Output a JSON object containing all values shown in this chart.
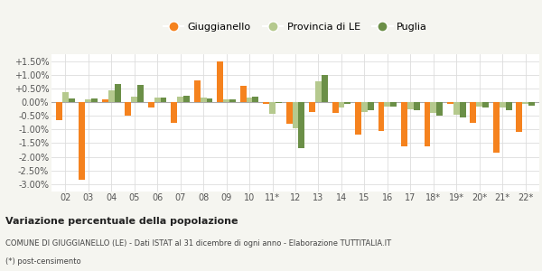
{
  "years": [
    "02",
    "03",
    "04",
    "05",
    "06",
    "07",
    "08",
    "09",
    "10",
    "11*",
    "12",
    "13",
    "14",
    "15",
    "16",
    "17",
    "18*",
    "19*",
    "20*",
    "21*",
    "22*"
  ],
  "giuggianello": [
    -0.65,
    -2.85,
    0.1,
    -0.5,
    -0.2,
    -0.75,
    0.8,
    1.47,
    0.6,
    -0.08,
    -0.8,
    -0.35,
    -0.4,
    -1.2,
    -1.07,
    -1.6,
    -1.63,
    -0.05,
    -0.75,
    -1.85,
    -1.1
  ],
  "provincia_le": [
    0.37,
    0.1,
    0.42,
    0.2,
    0.18,
    0.2,
    0.18,
    0.1,
    0.18,
    -0.44,
    -0.97,
    0.75,
    -0.2,
    -0.35,
    -0.15,
    -0.25,
    -0.4,
    -0.45,
    -0.15,
    -0.2,
    -0.05
  ],
  "puglia": [
    0.13,
    0.13,
    0.65,
    0.63,
    0.17,
    0.23,
    0.12,
    0.1,
    0.19,
    -0.04,
    -1.68,
    1.0,
    -0.07,
    -0.3,
    -0.18,
    -0.28,
    -0.48,
    -0.55,
    -0.2,
    -0.28,
    -0.13
  ],
  "color_giuggianello": "#f5821e",
  "color_provincia": "#b5c98e",
  "color_puglia": "#6b8f47",
  "ylim_min": -3.25,
  "ylim_max": 1.75,
  "ytick_vals": [
    -3.0,
    -2.5,
    -2.0,
    -1.5,
    -1.0,
    -0.5,
    0.0,
    0.5,
    1.0,
    1.5
  ],
  "ytick_labels": [
    "-3.00%",
    "-2.50%",
    "-2.00%",
    "-1.50%",
    "-1.00%",
    "-0.50%",
    "0.00%",
    "+0.50%",
    "+1.00%",
    "+1.50%"
  ],
  "title": "Variazione percentuale della popolazione",
  "subtitle": "COMUNE DI GIUGGIANELLO (LE) - Dati ISTAT al 31 dicembre di ogni anno - Elaborazione TUTTITALIA.IT",
  "footnote": "(*) post-censimento",
  "legend_labels": [
    "Giuggianello",
    "Provincia di LE",
    "Puglia"
  ],
  "bg_color": "#f5f5f0",
  "plot_bg_color": "#ffffff"
}
